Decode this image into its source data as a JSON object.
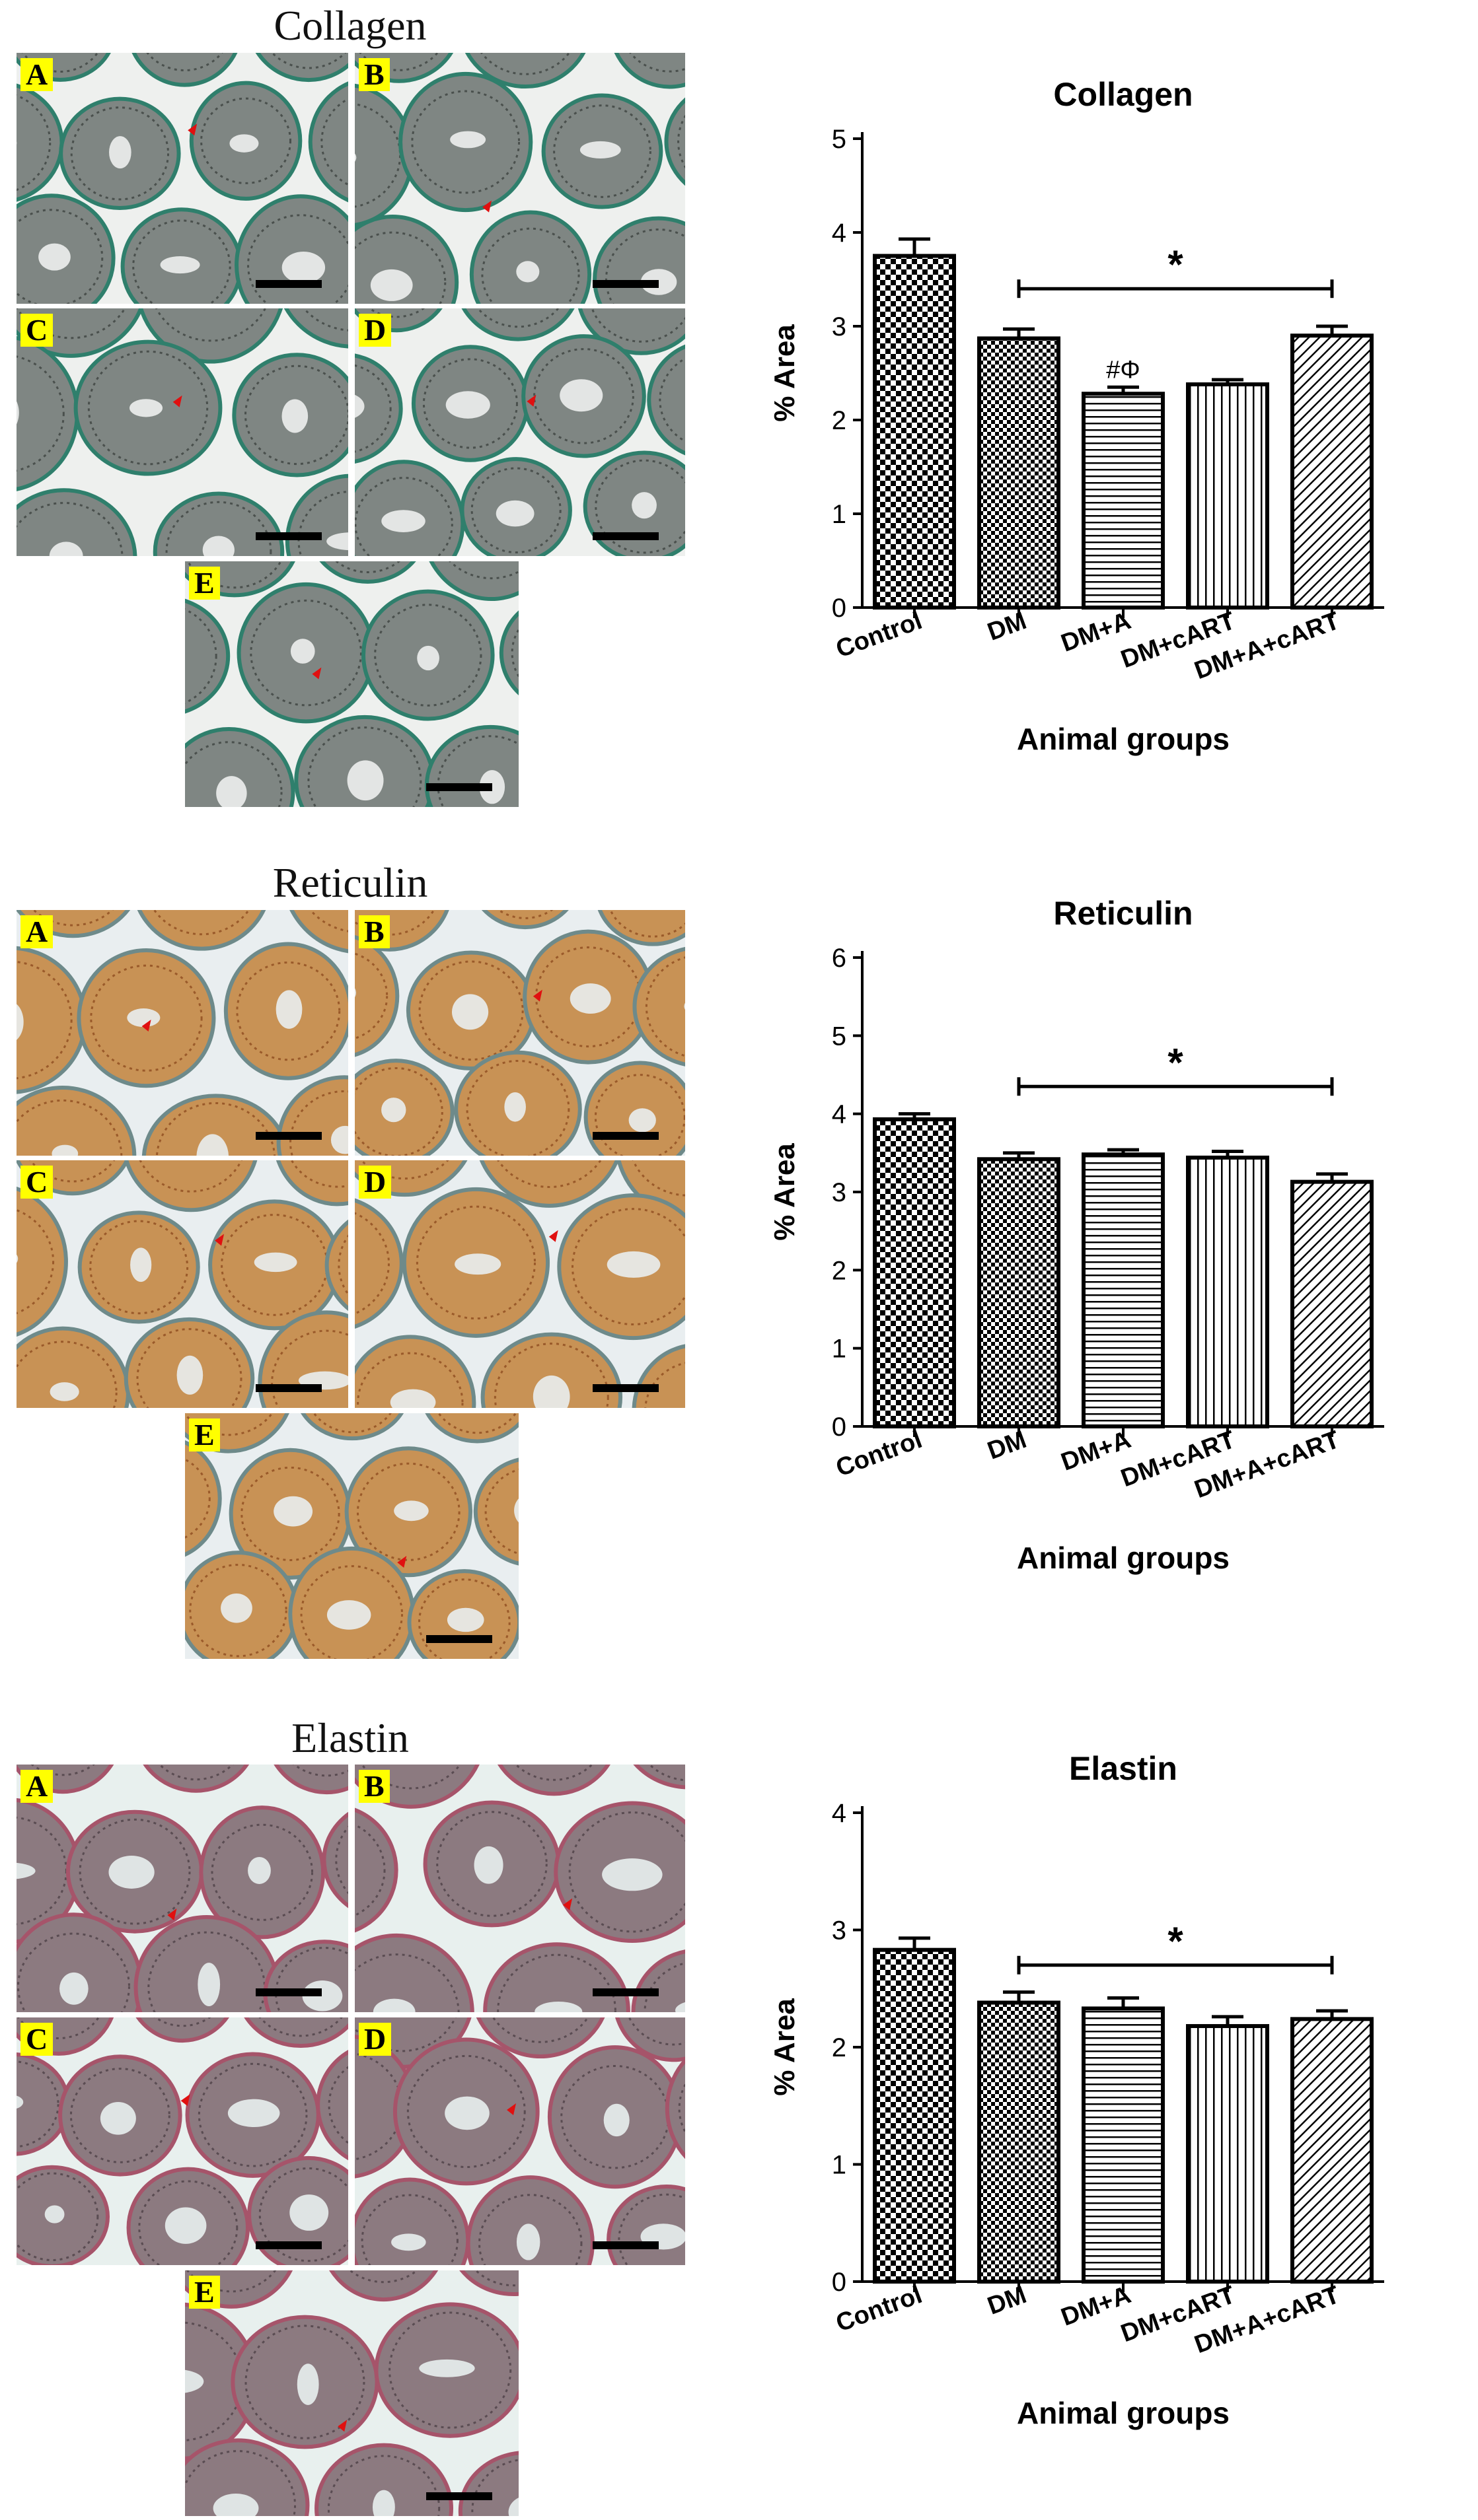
{
  "figure": {
    "sections": [
      {
        "title": "Collagen",
        "panel_letters": [
          "A",
          "B",
          "C",
          "D",
          "E"
        ],
        "stain_colors": {
          "tissue": "#7f8683",
          "tissue_dark": "#4a504d",
          "background": "#eef0ee",
          "stroma": "#2f7f6c"
        }
      },
      {
        "title": "Reticulin",
        "panel_letters": [
          "A",
          "B",
          "C",
          "D",
          "E"
        ],
        "stain_colors": {
          "tissue": "#c89255",
          "tissue_dark": "#9a5a2a",
          "background": "#e9eef0",
          "stroma": "#6e8a8a"
        }
      },
      {
        "title": "Elastin",
        "panel_letters": [
          "A",
          "B",
          "C",
          "D",
          "E"
        ],
        "stain_colors": {
          "tissue": "#8c7a80",
          "tissue_dark": "#5a4c52",
          "background": "#e8f0ee",
          "stroma": "#a6546a"
        }
      }
    ]
  },
  "chart_data": [
    {
      "type": "bar",
      "title": "Collagen",
      "xlabel": "Animal groups",
      "ylabel": "% Area",
      "categories": [
        "Control",
        "DM",
        "DM+A",
        "DM+cART",
        "DM+A+cART"
      ],
      "values": [
        3.75,
        2.87,
        2.28,
        2.38,
        2.9
      ],
      "errors": [
        0.18,
        0.1,
        0.07,
        0.05,
        0.1
      ],
      "patterns": [
        "checker",
        "checker-dense",
        "horizontal",
        "vertical",
        "diagonal"
      ],
      "ylim": [
        0,
        5
      ],
      "yticks": [
        0,
        1,
        2,
        3,
        4,
        5
      ],
      "bracket": {
        "from": "DM",
        "to": "DM+A+cART",
        "y": 3.4,
        "label": "*"
      },
      "annotations": [
        {
          "category": "DM+A",
          "text": "#Φ"
        }
      ]
    },
    {
      "type": "bar",
      "title": "Reticulin",
      "xlabel": "Animal groups",
      "ylabel": "% Area",
      "categories": [
        "Control",
        "DM",
        "DM+A",
        "DM+cART",
        "DM+A+cART"
      ],
      "values": [
        3.93,
        3.42,
        3.48,
        3.44,
        3.13
      ],
      "errors": [
        0.07,
        0.08,
        0.06,
        0.08,
        0.1
      ],
      "patterns": [
        "checker",
        "checker-dense",
        "horizontal",
        "vertical",
        "diagonal"
      ],
      "ylim": [
        0,
        6
      ],
      "yticks": [
        0,
        1,
        2,
        3,
        4,
        5,
        6
      ],
      "bracket": {
        "from": "DM",
        "to": "DM+A+cART",
        "y": 4.35,
        "label": "*"
      },
      "annotations": []
    },
    {
      "type": "bar",
      "title": "Elastin",
      "xlabel": "Animal groups",
      "ylabel": "% Area",
      "categories": [
        "Control",
        "DM",
        "DM+A",
        "DM+cART",
        "DM+A+cART"
      ],
      "values": [
        2.83,
        2.38,
        2.33,
        2.18,
        2.24
      ],
      "errors": [
        0.1,
        0.09,
        0.09,
        0.08,
        0.07
      ],
      "patterns": [
        "checker",
        "checker-dense",
        "horizontal",
        "vertical",
        "diagonal"
      ],
      "ylim": [
        0,
        4
      ],
      "yticks": [
        0,
        1,
        2,
        3,
        4
      ],
      "bracket": {
        "from": "DM",
        "to": "DM+A+cART",
        "y": 2.7,
        "label": "*"
      },
      "annotations": []
    }
  ]
}
